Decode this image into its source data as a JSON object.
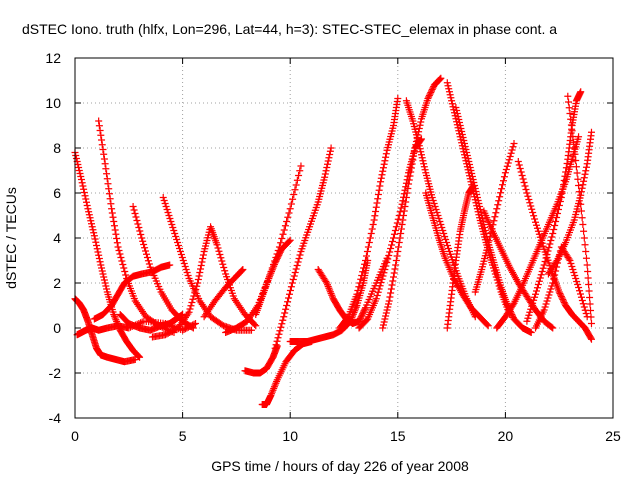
{
  "chart_data": {
    "type": "scatter",
    "title": "dSTEC Iono. truth (hlfx, Lon=296, Lat=44, h=3): STEC-STEC_elemax in phase cont. a",
    "xlabel": "GPS time / hours of day 226 of year 2008",
    "ylabel": "dSTEC  / TECUs",
    "xlim": [
      0,
      25
    ],
    "ylim": [
      -4,
      12
    ],
    "xticks": [
      0,
      5,
      10,
      15,
      20,
      25
    ],
    "yticks": [
      -4,
      -2,
      0,
      2,
      4,
      6,
      8,
      10,
      12
    ],
    "grid": true,
    "marker": "+",
    "color": "#ff0000",
    "series": [
      {
        "x": [
          0.0,
          0.3,
          0.6,
          0.9,
          1.2,
          1.5,
          1.8,
          2.1,
          2.4,
          2.7,
          3.0
        ],
        "y": [
          7.8,
          6.6,
          5.3,
          4.1,
          2.8,
          1.6,
          0.6,
          -0.1,
          -0.6,
          -1.0,
          -1.3
        ]
      },
      {
        "x": [
          0.0,
          0.2,
          0.4,
          0.6,
          0.8,
          1.0,
          1.2,
          1.5,
          1.9,
          2.3,
          2.8
        ],
        "y": [
          1.3,
          1.1,
          0.8,
          0.3,
          -0.3,
          -0.9,
          -1.2,
          -1.3,
          -1.4,
          -1.5,
          -1.4
        ]
      },
      {
        "x": [
          0.1,
          0.3,
          0.5,
          0.8,
          1.1,
          1.5,
          2.0,
          2.5,
          3.2,
          4.2,
          5.0,
          5.6
        ],
        "y": [
          -0.3,
          -0.2,
          -0.1,
          0.0,
          -0.1,
          0.0,
          0.1,
          0.0,
          0.3,
          0.2,
          -0.1,
          0.2
        ]
      },
      {
        "x": [
          1.1,
          1.4,
          1.7,
          2.0,
          2.4,
          2.8,
          3.3,
          3.9,
          4.6
        ],
        "y": [
          9.2,
          7.3,
          5.3,
          3.6,
          2.2,
          1.2,
          0.5,
          0.1,
          -0.2
        ]
      },
      {
        "x": [
          0.9,
          1.3,
          1.7,
          2.0,
          2.3,
          2.7,
          3.1,
          3.6,
          4.0,
          4.4
        ],
        "y": [
          0.4,
          0.6,
          1.0,
          1.5,
          2.0,
          2.3,
          2.4,
          2.5,
          2.7,
          2.8
        ]
      },
      {
        "x": [
          2.7,
          3.1,
          3.5,
          4.0,
          4.5,
          5.0,
          5.5
        ],
        "y": [
          5.4,
          4.0,
          2.7,
          1.6,
          0.8,
          0.3,
          0.0
        ]
      },
      {
        "x": [
          4.1,
          4.5,
          4.9,
          5.3,
          5.8,
          6.3,
          6.9,
          7.5,
          8.2
        ],
        "y": [
          5.8,
          4.6,
          3.4,
          2.2,
          1.2,
          0.5,
          0.1,
          -0.1,
          -0.1
        ]
      },
      {
        "x": [
          2.1,
          2.5,
          3.0,
          3.5,
          4.0,
          4.4,
          4.7,
          5.0
        ],
        "y": [
          0.6,
          0.2,
          0.0,
          -0.1,
          0.1,
          0.2,
          0.4,
          0.6
        ]
      },
      {
        "x": [
          3.6,
          4.2,
          4.8,
          5.3,
          5.7,
          6.0,
          6.3,
          6.6,
          7.0,
          7.4,
          7.9,
          8.4
        ],
        "y": [
          -0.4,
          -0.3,
          0.0,
          0.7,
          2.0,
          3.4,
          4.5,
          3.7,
          2.4,
          1.3,
          0.6,
          0.1
        ]
      },
      {
        "x": [
          6.0,
          6.5,
          7.0,
          7.5,
          7.8
        ],
        "y": [
          0.5,
          1.2,
          1.8,
          2.3,
          2.6
        ]
      },
      {
        "x": [
          7.9,
          8.3,
          8.6,
          8.9,
          9.2,
          9.4
        ],
        "y": [
          -1.9,
          -2.0,
          -2.0,
          -1.8,
          -1.3,
          -0.8
        ]
      },
      {
        "x": [
          8.7,
          8.9,
          9.1,
          9.4,
          9.8,
          10.2,
          10.6,
          11.0
        ],
        "y": [
          -3.4,
          -3.4,
          -3.0,
          -2.3,
          -1.5,
          -1.0,
          -0.7,
          -0.6
        ]
      },
      {
        "x": [
          9.3,
          9.7,
          10.1,
          10.5,
          10.9,
          11.3,
          11.6,
          11.9
        ],
        "y": [
          -0.9,
          0.5,
          2.0,
          3.4,
          4.5,
          5.6,
          6.7,
          8.0
        ]
      },
      {
        "x": [
          10.0,
          10.4,
          10.8,
          11.2,
          11.6,
          12.0,
          12.4,
          12.8,
          13.1,
          13.4,
          13.6
        ],
        "y": [
          -0.6,
          -0.6,
          -0.6,
          -0.5,
          -0.4,
          -0.3,
          -0.1,
          0.3,
          1.0,
          2.0,
          3.0
        ]
      },
      {
        "x": [
          7.0,
          7.5,
          8.0,
          8.5,
          9.0,
          9.5,
          10.0,
          10.5
        ],
        "y": [
          -0.2,
          0.0,
          0.3,
          1.0,
          2.2,
          3.6,
          5.3,
          7.2
        ]
      },
      {
        "x": [
          8.4,
          8.7,
          9.0,
          9.3,
          9.6,
          10.0
        ],
        "y": [
          0.6,
          1.4,
          2.2,
          2.9,
          3.5,
          3.9
        ]
      },
      {
        "x": [
          11.3,
          11.7,
          12.0,
          12.3,
          12.6,
          12.9,
          13.2,
          13.5,
          14.0,
          14.5
        ],
        "y": [
          2.6,
          2.0,
          1.3,
          0.8,
          0.4,
          0.2,
          0.3,
          0.9,
          2.0,
          3.1
        ]
      },
      {
        "x": [
          12.3,
          12.7,
          13.1,
          13.5,
          13.9,
          14.2,
          14.5,
          14.8,
          15.0
        ],
        "y": [
          0.0,
          0.5,
          1.5,
          3.0,
          4.8,
          6.5,
          7.9,
          9.0,
          10.2
        ]
      },
      {
        "x": [
          13.2,
          13.6,
          14.0,
          14.4,
          14.8,
          15.2,
          15.5,
          15.8,
          16.1
        ],
        "y": [
          0.0,
          0.4,
          1.3,
          2.6,
          4.0,
          5.5,
          6.9,
          8.0,
          8.4
        ]
      },
      {
        "x": [
          14.3,
          14.6,
          14.9,
          15.2,
          15.5,
          15.8,
          16.1,
          16.4,
          16.7,
          17.0
        ],
        "y": [
          0.0,
          1.2,
          2.8,
          4.6,
          6.4,
          8.0,
          9.3,
          10.2,
          10.8,
          11.1
        ]
      },
      {
        "x": [
          15.4,
          15.7,
          16.0,
          16.3,
          16.6,
          17.0,
          17.4,
          17.8,
          18.2,
          18.6
        ],
        "y": [
          10.1,
          9.2,
          8.1,
          6.9,
          5.8,
          4.6,
          3.4,
          2.3,
          1.3,
          0.5
        ]
      },
      {
        "x": [
          16.3,
          16.6,
          16.9,
          17.2,
          17.6,
          18.0,
          18.4,
          18.8,
          19.2
        ],
        "y": [
          6.0,
          5.0,
          4.0,
          3.1,
          2.2,
          1.5,
          0.9,
          0.5,
          0.1
        ]
      },
      {
        "x": [
          17.3,
          17.6,
          17.9,
          18.2,
          18.5,
          18.8,
          19.1,
          19.4,
          19.8,
          20.2
        ],
        "y": [
          10.9,
          9.7,
          8.5,
          7.3,
          6.1,
          4.9,
          3.8,
          2.8,
          1.6,
          0.6
        ]
      },
      {
        "x": [
          17.7,
          18.0,
          18.3,
          18.6,
          18.9,
          19.2,
          19.5,
          19.8,
          20.1,
          20.4,
          20.8,
          21.2
        ],
        "y": [
          9.8,
          8.6,
          7.4,
          6.2,
          5.0,
          3.8,
          2.8,
          1.8,
          1.0,
          0.4,
          0.0,
          -0.2
        ]
      },
      {
        "x": [
          17.3,
          17.5,
          17.7,
          17.9,
          18.1,
          18.3,
          18.5
        ],
        "y": [
          0.0,
          1.5,
          3.0,
          4.3,
          5.2,
          6.0,
          6.3
        ]
      },
      {
        "x": [
          18.6,
          18.9,
          19.2,
          19.6,
          20.0,
          20.4
        ],
        "y": [
          1.6,
          2.6,
          3.7,
          5.3,
          6.9,
          8.2
        ]
      },
      {
        "x": [
          19.0,
          19.4,
          19.8,
          20.2,
          20.6,
          21.0,
          21.4,
          21.8,
          22.2
        ],
        "y": [
          5.2,
          4.3,
          3.5,
          2.7,
          2.0,
          1.4,
          0.8,
          0.3,
          0.0
        ]
      },
      {
        "x": [
          20.6,
          21.0,
          21.4,
          21.8,
          22.2,
          22.5,
          22.8,
          23.1,
          23.4,
          23.7,
          24.0
        ],
        "y": [
          7.4,
          6.0,
          4.7,
          3.5,
          2.4,
          1.6,
          1.0,
          0.6,
          0.3,
          0.0,
          -0.5
        ]
      },
      {
        "x": [
          19.6,
          20.0,
          20.4,
          20.8,
          21.2,
          21.6,
          22.0,
          22.4,
          22.8,
          23.1,
          23.4
        ],
        "y": [
          0.0,
          0.5,
          1.1,
          1.9,
          2.8,
          3.7,
          4.6,
          5.5,
          6.5,
          7.5,
          8.5
        ]
      },
      {
        "x": [
          21.0,
          21.4,
          21.8,
          22.2,
          22.6,
          22.9,
          23.1,
          23.3,
          23.5
        ],
        "y": [
          0.3,
          1.5,
          2.8,
          4.2,
          5.8,
          7.5,
          9.0,
          10.1,
          10.5
        ]
      },
      {
        "x": [
          22.0,
          22.4,
          22.8,
          23.2,
          23.5,
          23.8,
          24.0
        ],
        "y": [
          2.4,
          3.0,
          3.8,
          4.8,
          5.9,
          7.3,
          8.7
        ]
      },
      {
        "x": [
          22.9,
          23.2,
          23.5,
          23.8,
          24.0
        ],
        "y": [
          10.3,
          8.0,
          5.5,
          2.8,
          0.2
        ]
      },
      {
        "x": [
          21.4,
          21.8,
          22.2,
          22.6,
          23.0,
          23.4,
          23.8
        ],
        "y": [
          0.0,
          0.8,
          2.0,
          3.6,
          3.0,
          1.8,
          0.5
        ]
      }
    ]
  }
}
